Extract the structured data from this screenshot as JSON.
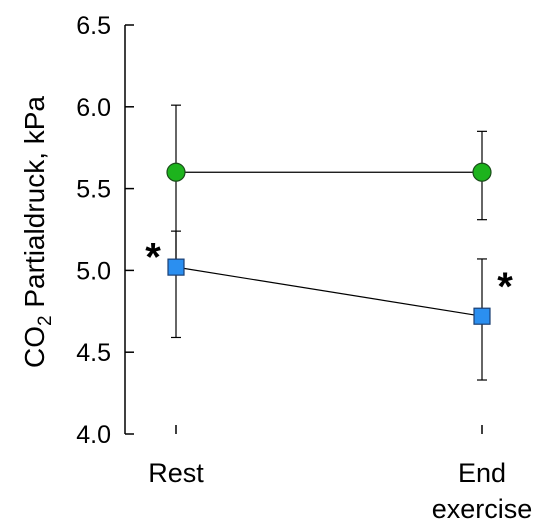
{
  "chart_data": {
    "type": "line",
    "title": "",
    "xlabel": "",
    "ylabel": {
      "prefix": "CO",
      "subscript": "2",
      "suffix": " Partialdruck, kPa"
    },
    "categories": [
      "Rest",
      "End exercise"
    ],
    "category_lines": [
      [
        "Rest"
      ],
      [
        "End",
        "exercise"
      ]
    ],
    "ylim": [
      4.0,
      6.5
    ],
    "yticks": [
      4.0,
      4.5,
      5.0,
      5.5,
      6.0,
      6.5
    ],
    "ytick_labels": [
      "4.0",
      "4.5",
      "5.0",
      "5.5",
      "6.0",
      "6.5"
    ],
    "grid": false,
    "legend": "none",
    "series": [
      {
        "marker": "circle",
        "color": "#1db31d",
        "values": [
          5.6,
          5.6
        ],
        "error_upper": [
          6.01,
          5.85
        ],
        "error_lower": [
          5.02,
          5.31
        ]
      },
      {
        "marker": "square",
        "color": "#2b8ff0",
        "values": [
          5.02,
          4.72
        ],
        "error_upper": [
          5.24,
          5.07
        ],
        "error_lower": [
          4.59,
          4.33
        ]
      }
    ],
    "annotations": [
      {
        "text": "*",
        "category": 0,
        "side": "left",
        "y": 5.14
      },
      {
        "text": "*",
        "category": 1,
        "side": "right",
        "y": 4.96
      }
    ]
  }
}
